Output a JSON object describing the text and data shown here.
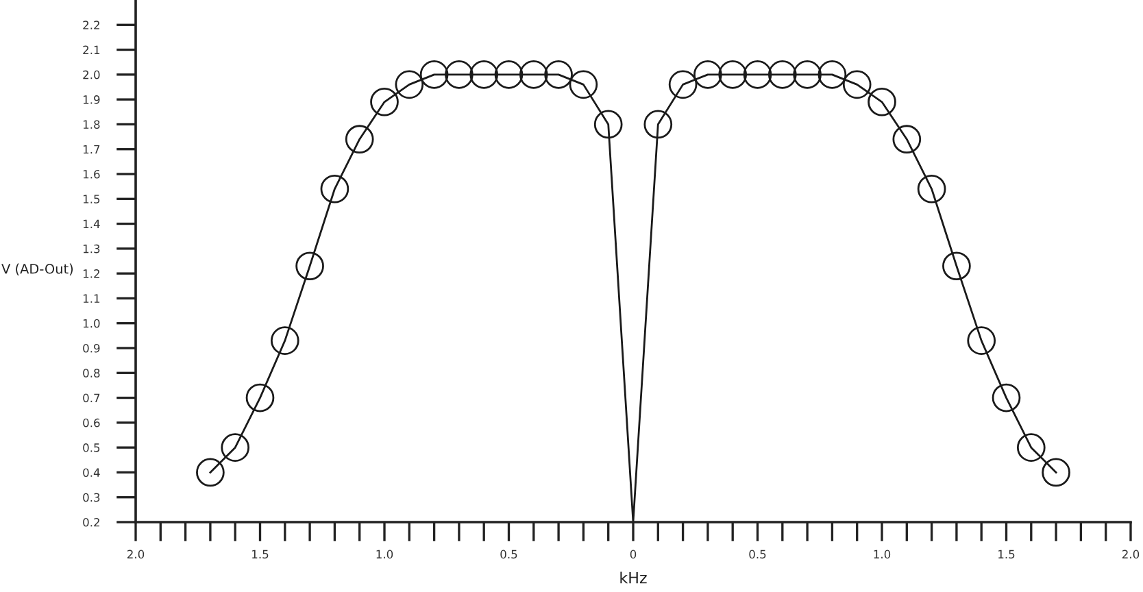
{
  "chart_data": {
    "type": "line",
    "xlabel": "kHz",
    "ylabel": "V (AD-Out)",
    "series": [
      {
        "color": "#1a1a1a",
        "marker": "none",
        "line_style": "solid",
        "x": [
          -1.7,
          -1.6,
          -1.5,
          -1.4,
          -1.3,
          -1.2,
          -1.1,
          -1.0,
          -0.9,
          -0.8,
          -0.7,
          -0.6,
          -0.5,
          -0.4,
          -0.3,
          -0.2,
          -0.1,
          0,
          0.1,
          0.2,
          0.3,
          0.4,
          0.5,
          0.6,
          0.7,
          0.8,
          0.9,
          1.0,
          1.1,
          1.2,
          1.3,
          1.4,
          1.5,
          1.6,
          1.7
        ],
        "values": [
          0.4,
          0.5,
          0.7,
          0.93,
          1.23,
          1.54,
          1.74,
          1.89,
          1.96,
          2.0,
          2.0,
          2.0,
          2.0,
          2.0,
          2.0,
          1.96,
          1.8,
          0.2,
          1.8,
          1.96,
          2.0,
          2.0,
          2.0,
          2.0,
          2.0,
          2.0,
          1.96,
          1.89,
          1.74,
          1.54,
          1.23,
          0.93,
          0.7,
          0.5,
          0.4
        ]
      },
      {
        "type": "scatter",
        "color": "#1a1a1a",
        "marker": "circle",
        "x": [
          -1.7,
          -1.6,
          -1.5,
          -1.4,
          -1.3,
          -1.2,
          -1.1,
          -1.0,
          -0.9,
          -0.8,
          -0.7,
          -0.6,
          -0.5,
          -0.4,
          -0.3,
          -0.2,
          -0.1,
          0.1,
          0.2,
          0.3,
          0.4,
          0.5,
          0.6,
          0.7,
          0.8,
          0.9,
          1.0,
          1.1,
          1.2,
          1.3,
          1.4,
          1.5,
          1.6,
          1.7
        ],
        "values": [
          0.4,
          0.5,
          0.7,
          0.93,
          1.23,
          1.54,
          1.74,
          1.89,
          1.96,
          2.0,
          2.0,
          2.0,
          2.0,
          2.0,
          2.0,
          1.96,
          1.8,
          1.8,
          1.96,
          2.0,
          2.0,
          2.0,
          2.0,
          2.0,
          2.0,
          1.96,
          1.89,
          1.74,
          1.54,
          1.23,
          0.93,
          0.7,
          0.5,
          0.4
        ]
      }
    ],
    "xlim": [
      -2.0,
      2.0
    ],
    "xticks": [
      {
        "value": -2.0,
        "label": "2.0"
      },
      {
        "value": -1.9,
        "label": null
      },
      {
        "value": -1.8,
        "label": null
      },
      {
        "value": -1.7,
        "label": null
      },
      {
        "value": -1.6,
        "label": null
      },
      {
        "value": -1.5,
        "label": "1.5"
      },
      {
        "value": -1.4,
        "label": null
      },
      {
        "value": -1.3,
        "label": null
      },
      {
        "value": -1.2,
        "label": null
      },
      {
        "value": -1.1,
        "label": null
      },
      {
        "value": -1.0,
        "label": "1.0"
      },
      {
        "value": -0.9,
        "label": null
      },
      {
        "value": -0.8,
        "label": null
      },
      {
        "value": -0.7,
        "label": null
      },
      {
        "value": -0.6,
        "label": null
      },
      {
        "value": -0.5,
        "label": "0.5"
      },
      {
        "value": -0.4,
        "label": null
      },
      {
        "value": -0.3,
        "label": null
      },
      {
        "value": -0.2,
        "label": null
      },
      {
        "value": -0.1,
        "label": null
      },
      0,
      {
        "value": 0.1,
        "label": null
      },
      {
        "value": 0.2,
        "label": null
      },
      {
        "value": 0.3,
        "label": null
      },
      {
        "value": 0.4,
        "label": null
      },
      0.5,
      {
        "value": 0.6,
        "label": null
      },
      {
        "value": 0.7,
        "label": null
      },
      {
        "value": 0.8,
        "label": null
      },
      {
        "value": 0.9,
        "label": null
      },
      {
        "value": 1.0,
        "label": "1.0"
      },
      {
        "value": 1.1,
        "label": null
      },
      {
        "value": 1.2,
        "label": null
      },
      {
        "value": 1.3,
        "label": null
      },
      {
        "value": 1.4,
        "label": null
      },
      1.5,
      {
        "value": 1.6,
        "label": null
      },
      {
        "value": 1.7,
        "label": null
      },
      {
        "value": 1.8,
        "label": null
      },
      {
        "value": 1.9,
        "label": null
      },
      {
        "value": 2.0,
        "label": "2.0"
      }
    ],
    "ylim": [
      0.2,
      2.3
    ],
    "yticks": [
      0.2,
      0.3,
      0.4,
      0.5,
      0.6,
      0.7,
      0.8,
      0.9,
      {
        "value": 1.0,
        "label": "1.0"
      },
      1.1,
      1.2,
      1.3,
      1.4,
      1.5,
      1.6,
      1.7,
      1.8,
      1.9,
      {
        "value": 2.0,
        "label": "2.0"
      },
      2.1,
      2.2
    ]
  }
}
